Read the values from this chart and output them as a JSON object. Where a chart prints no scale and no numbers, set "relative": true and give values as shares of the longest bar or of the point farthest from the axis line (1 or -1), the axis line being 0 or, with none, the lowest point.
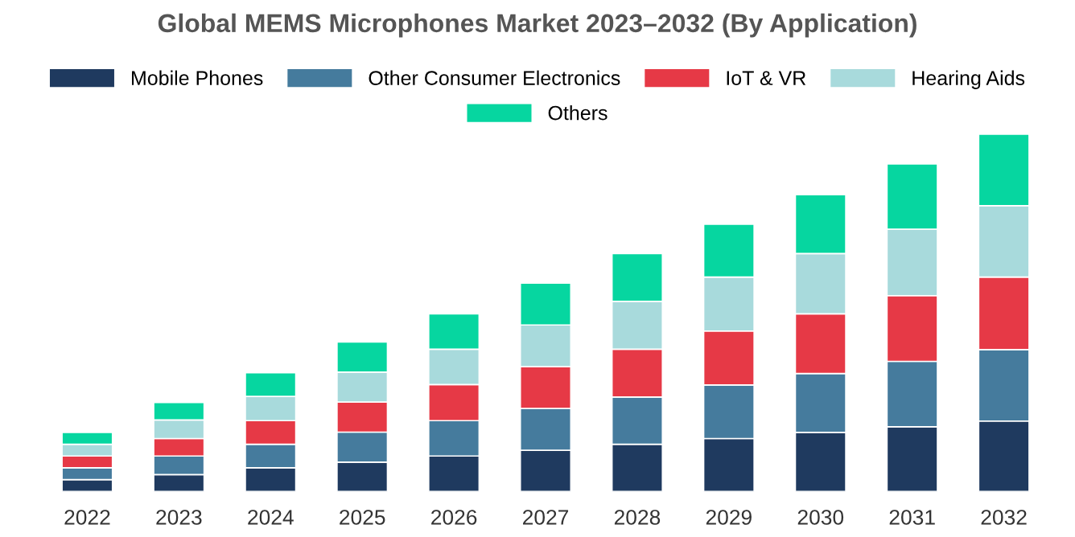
{
  "chart_data": {
    "type": "bar",
    "title": "Global MEMS Microphones Market 2023–2032 (By Application)",
    "categories": [
      "2022",
      "2023",
      "2024",
      "2025",
      "2026",
      "2027",
      "2028",
      "2029",
      "2030",
      "2031",
      "2032"
    ],
    "stacked": true,
    "relative": true,
    "legend": "top",
    "grid": false,
    "series": [
      {
        "name": "Mobile Phones",
        "color": "#1f3a5f",
        "values": [
          0.033,
          0.047,
          0.066,
          0.082,
          0.099,
          0.115,
          0.132,
          0.148,
          0.165,
          0.181,
          0.197
        ]
      },
      {
        "name": "Other Consumer Electronics",
        "color": "#457b9d",
        "values": [
          0.033,
          0.052,
          0.066,
          0.084,
          0.099,
          0.117,
          0.132,
          0.15,
          0.165,
          0.183,
          0.2
        ]
      },
      {
        "name": "IoT & VR",
        "color": "#e63946",
        "values": [
          0.033,
          0.049,
          0.066,
          0.084,
          0.101,
          0.117,
          0.134,
          0.151,
          0.167,
          0.184,
          0.203
        ]
      },
      {
        "name": "Hearing Aids",
        "color": "#a8dadc",
        "values": [
          0.033,
          0.052,
          0.068,
          0.084,
          0.099,
          0.117,
          0.134,
          0.151,
          0.169,
          0.186,
          0.2
        ]
      },
      {
        "name": "Others",
        "color": "#06d6a0",
        "values": [
          0.033,
          0.049,
          0.066,
          0.084,
          0.099,
          0.117,
          0.134,
          0.148,
          0.165,
          0.183,
          0.2
        ]
      }
    ]
  }
}
